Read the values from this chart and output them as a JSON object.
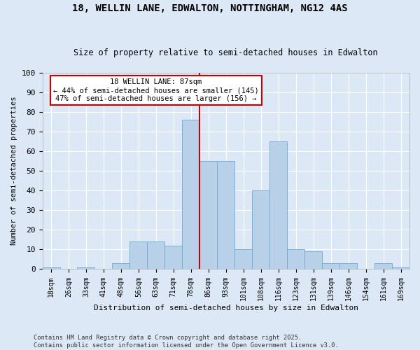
{
  "title_line1": "18, WELLIN LANE, EDWALTON, NOTTINGHAM, NG12 4AS",
  "title_line2": "Size of property relative to semi-detached houses in Edwalton",
  "xlabel": "Distribution of semi-detached houses by size in Edwalton",
  "ylabel": "Number of semi-detached properties",
  "categories": [
    "18sqm",
    "26sqm",
    "33sqm",
    "41sqm",
    "48sqm",
    "56sqm",
    "63sqm",
    "71sqm",
    "78sqm",
    "86sqm",
    "93sqm",
    "101sqm",
    "108sqm",
    "116sqm",
    "123sqm",
    "131sqm",
    "139sqm",
    "146sqm",
    "154sqm",
    "161sqm",
    "169sqm"
  ],
  "values": [
    1,
    0,
    1,
    0,
    3,
    14,
    14,
    12,
    76,
    55,
    55,
    10,
    40,
    65,
    10,
    9,
    3,
    3,
    0,
    3,
    1
  ],
  "bar_color": "#b8d0e8",
  "bar_edge_color": "#6aaad4",
  "background_color": "#dce8f5",
  "grid_color": "#ffffff",
  "vline_color": "#cc0000",
  "annotation_text": "18 WELLIN LANE: 87sqm\n← 44% of semi-detached houses are smaller (145)\n47% of semi-detached houses are larger (156) →",
  "annotation_box_color": "#ffffff",
  "annotation_box_edge": "#cc0000",
  "footer_text": "Contains HM Land Registry data © Crown copyright and database right 2025.\nContains public sector information licensed under the Open Government Licence v3.0.",
  "ylim": [
    0,
    100
  ],
  "yticks": [
    0,
    10,
    20,
    30,
    40,
    50,
    60,
    70,
    80,
    90,
    100
  ]
}
